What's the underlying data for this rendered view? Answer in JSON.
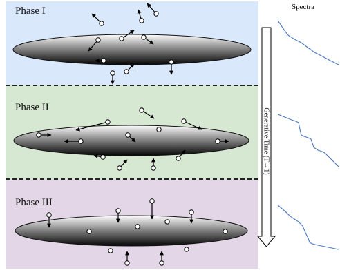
{
  "phases": [
    {
      "label": "Phase I"
    },
    {
      "label": "Phase II"
    },
    {
      "label": "Phase III"
    }
  ],
  "spectra_title": "Spectra",
  "time_axis_label": "Generative Time (T→1)",
  "colors": {
    "phase1_bg": "#dae8fb",
    "phase2_bg": "#d7e8d2",
    "phase3_bg": "#e3d6e6",
    "spectrum_line": "#4a78c2"
  }
}
